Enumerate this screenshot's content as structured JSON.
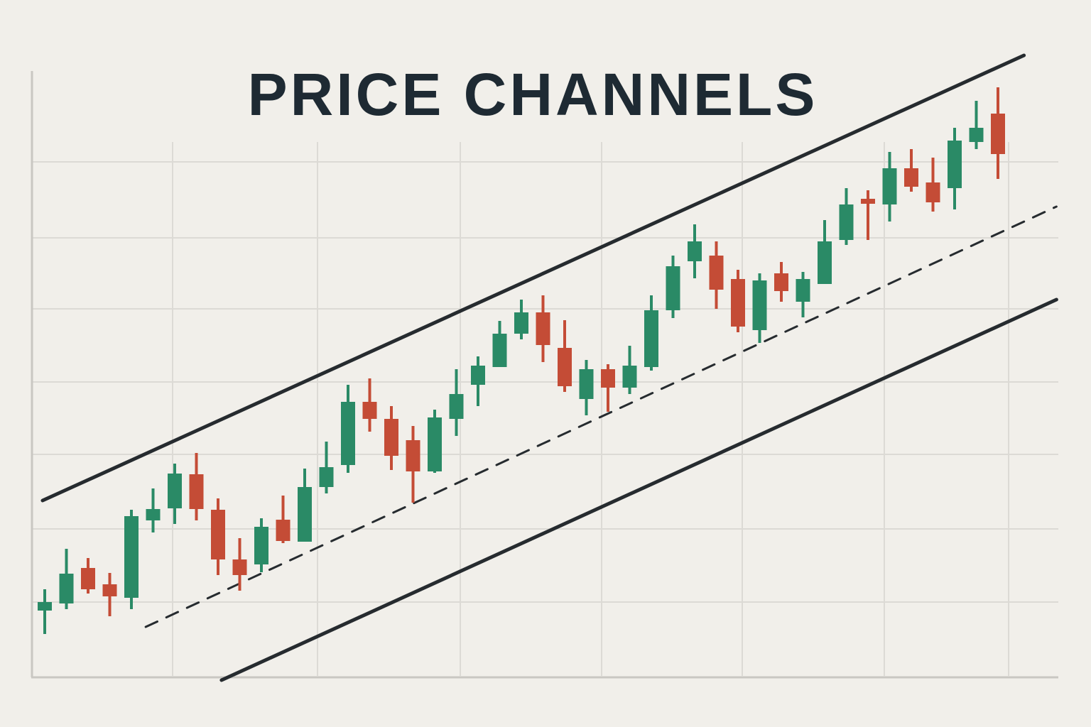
{
  "chart_data": {
    "type": "candlestick",
    "title": "PRICE CHANNELS",
    "categories": [
      null,
      null,
      null,
      null,
      null,
      null,
      null,
      null,
      null,
      null,
      null,
      null,
      null,
      null,
      null,
      null,
      null,
      null,
      null,
      null,
      null,
      null,
      null,
      null,
      null,
      null,
      null,
      null,
      null,
      null,
      null,
      null,
      null,
      null,
      null,
      null,
      null,
      null,
      null,
      null,
      null,
      null,
      null,
      null,
      null
    ],
    "open": [
      9.2,
      10.2,
      15.2,
      12.9,
      11.0,
      21.9,
      23.6,
      28.4,
      23.4,
      16.4,
      15.7,
      22.0,
      18.9,
      26.6,
      29.7,
      38.6,
      36.2,
      33.2,
      28.8,
      36.2,
      41.0,
      43.5,
      48.2,
      51.2,
      46.2,
      39.0,
      43.2,
      40.6,
      43.5,
      51.5,
      58.4,
      59.2,
      55.9,
      48.7,
      56.7,
      52.7,
      55.2,
      61.4,
      67.2,
      66.4,
      71.5,
      69.5,
      68.7,
      75.2,
      79.2
    ],
    "high": [
      12.2,
      17.9,
      16.6,
      14.5,
      23.4,
      26.4,
      29.9,
      31.4,
      25.0,
      19.4,
      22.2,
      25.4,
      29.2,
      33.0,
      41.0,
      41.9,
      38.0,
      35.2,
      37.5,
      43.2,
      45.0,
      50.0,
      53.0,
      53.6,
      50.1,
      44.5,
      43.9,
      46.5,
      53.6,
      59.2,
      63.6,
      61.2,
      57.2,
      56.7,
      58.3,
      56.9,
      64.2,
      68.7,
      68.4,
      73.8,
      74.2,
      73.0,
      77.2,
      81.0,
      82.9
    ],
    "low": [
      5.9,
      9.4,
      11.6,
      8.4,
      9.4,
      20.2,
      21.4,
      21.9,
      14.2,
      12.0,
      14.6,
      18.7,
      18.9,
      25.7,
      28.6,
      34.4,
      29.0,
      24.4,
      28.6,
      33.8,
      38.0,
      43.5,
      47.4,
      44.2,
      40.0,
      36.7,
      37.2,
      39.7,
      43.0,
      50.4,
      56.0,
      51.7,
      48.4,
      46.9,
      52.7,
      50.5,
      55.2,
      60.7,
      61.4,
      64.0,
      68.2,
      65.4,
      65.7,
      74.2,
      70.0
    ],
    "close": [
      10.4,
      14.4,
      12.2,
      11.2,
      22.5,
      23.5,
      28.5,
      23.5,
      16.4,
      14.2,
      21.0,
      19.0,
      26.6,
      29.4,
      38.6,
      36.2,
      31.0,
      28.8,
      36.4,
      39.7,
      43.7,
      48.2,
      51.2,
      46.6,
      40.8,
      43.2,
      40.6,
      43.7,
      51.5,
      57.7,
      61.2,
      54.4,
      49.2,
      55.7,
      54.2,
      55.9,
      61.2,
      66.4,
      66.5,
      71.5,
      68.9,
      66.7,
      75.4,
      77.2,
      73.5
    ],
    "up_color": "#2a8a66",
    "down_color": "#c44c36",
    "ylim": [
      0,
      95.2
    ],
    "channels": [
      {
        "x": [
          -0.1,
          45.2
        ],
        "y": [
          24.7,
          87.4
        ],
        "dashed": false,
        "color": "#262b2f"
      },
      {
        "x": [
          4.66,
          46.7
        ],
        "y": [
          6.9,
          66.1
        ],
        "dashed": true,
        "color": "#262b2f"
      },
      {
        "x": [
          8.16,
          46.7
        ],
        "y": [
          -0.6,
          53.0
        ],
        "dashed": false,
        "color": "#262b2f"
      }
    ]
  }
}
